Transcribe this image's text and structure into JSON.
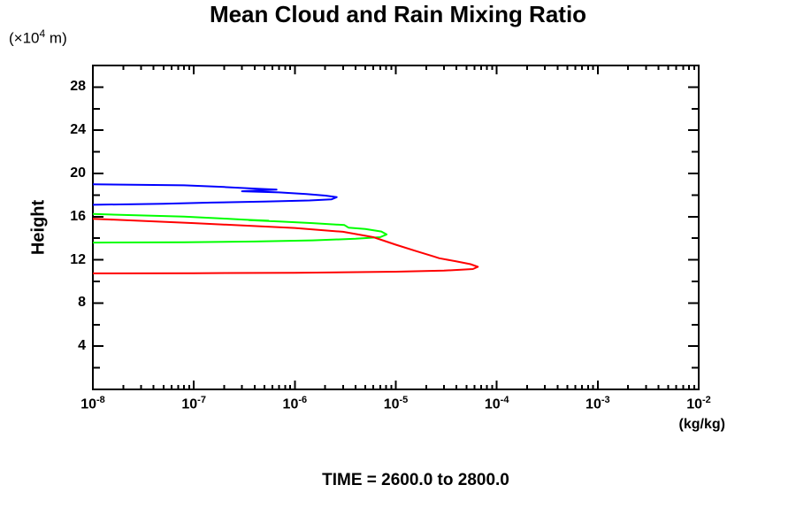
{
  "title": "Mean Cloud and Rain Mixing Ratio",
  "subtitle": "TIME = 2600.0 to 2800.0",
  "background": "#ffffff",
  "axes": {
    "x": {
      "scale": "log",
      "unit_label": "(kg/kg)",
      "tick_base": "10",
      "tick_exponents": [
        -8,
        -7,
        -6,
        -5,
        -4,
        -3,
        -2
      ],
      "range_exp": [
        -8,
        -2
      ]
    },
    "y": {
      "title": "Height",
      "unit_prefix": "(×10",
      "unit_exp": "4",
      "unit_suffix": " m)",
      "range": [
        0,
        30
      ],
      "labeled_ticks": [
        4,
        8,
        12,
        16,
        20,
        24,
        28
      ],
      "minor_ticks": [
        2,
        6,
        10,
        14,
        18,
        22,
        26
      ]
    }
  },
  "chart_data": {
    "type": "line",
    "title": "Mean Cloud and Rain Mixing Ratio",
    "xlabel": "(kg/kg)",
    "ylabel": "Height (x10^4 m)",
    "x_scale": "log",
    "xlim": [
      1e-08,
      0.01
    ],
    "ylim": [
      0,
      30
    ],
    "grid": false,
    "caption": "TIME = 2600.0 to 2800.0",
    "series": [
      {
        "name": "contour-blue",
        "color": "#0000ff",
        "points": [
          [
            1e-08,
            19.0
          ],
          [
            8e-08,
            18.9
          ],
          [
            2e-07,
            18.75
          ],
          [
            4e-07,
            18.6
          ],
          [
            6.6e-07,
            18.5
          ],
          [
            3e-07,
            18.35
          ],
          [
            7e-07,
            18.25
          ],
          [
            1.3e-06,
            18.1
          ],
          [
            2e-06,
            17.95
          ],
          [
            2.6e-06,
            17.8
          ],
          [
            2.3e-06,
            17.6
          ],
          [
            1.4e-06,
            17.5
          ],
          [
            5e-07,
            17.4
          ],
          [
            1.5e-07,
            17.3
          ],
          [
            5e-08,
            17.2
          ],
          [
            1e-08,
            17.1
          ]
        ]
      },
      {
        "name": "contour-green",
        "color": "#00ff00",
        "points": [
          [
            1e-08,
            16.25
          ],
          [
            8e-08,
            16.0
          ],
          [
            2e-07,
            15.82
          ],
          [
            3.2e-07,
            15.72
          ],
          [
            5.5e-07,
            15.62
          ],
          [
            3.5e-07,
            15.68
          ],
          [
            7e-07,
            15.55
          ],
          [
            1.5e-06,
            15.4
          ],
          [
            3.1e-06,
            15.22
          ],
          [
            3.4e-06,
            14.98
          ],
          [
            5e-06,
            14.85
          ],
          [
            7.2e-06,
            14.62
          ],
          [
            8.1e-06,
            14.35
          ],
          [
            7e-06,
            14.1
          ],
          [
            4e-06,
            13.95
          ],
          [
            1.5e-06,
            13.8
          ],
          [
            4e-07,
            13.7
          ],
          [
            8e-08,
            13.63
          ],
          [
            1e-08,
            13.6
          ]
        ]
      },
      {
        "name": "contour-red",
        "color": "#ff0000",
        "points": [
          [
            1e-08,
            15.8
          ],
          [
            1e-07,
            15.4
          ],
          [
            1e-06,
            14.95
          ],
          [
            3e-06,
            14.6
          ],
          [
            6e-06,
            14.1
          ],
          [
            1e-05,
            13.4
          ],
          [
            1.6e-05,
            12.8
          ],
          [
            2.4e-05,
            12.3
          ],
          [
            2.7e-05,
            12.15
          ],
          [
            4e-05,
            11.85
          ],
          [
            5.5e-05,
            11.6
          ],
          [
            6.5e-05,
            11.35
          ],
          [
            5.8e-05,
            11.15
          ],
          [
            3e-05,
            11.0
          ],
          [
            1e-05,
            10.9
          ],
          [
            1e-06,
            10.8
          ],
          [
            1e-07,
            10.76
          ],
          [
            1e-08,
            10.75
          ]
        ]
      }
    ]
  }
}
